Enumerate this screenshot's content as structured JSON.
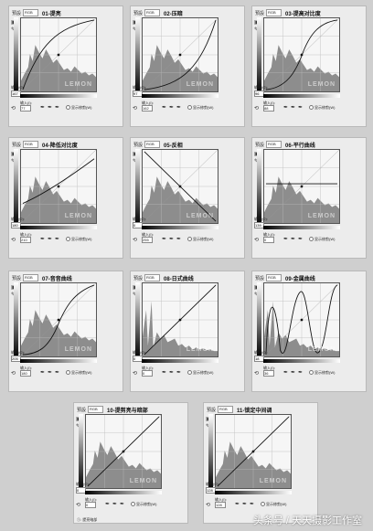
{
  "panels": [
    {
      "title": "01-提亮",
      "preset": "預設",
      "channel": "RGB",
      "output": "167",
      "input": "77"
    },
    {
      "title": "02-压暗",
      "preset": "預設",
      "channel": "RGB",
      "output": "97",
      "input": "162"
    },
    {
      "title": "03-提高对比度",
      "preset": "預設",
      "channel": "RGB",
      "output": "96",
      "input": "88"
    },
    {
      "title": "04-降低对比度",
      "preset": "預設",
      "channel": "RGB",
      "output": "180",
      "input": "210"
    },
    {
      "title": "05-反相",
      "preset": "預設",
      "channel": "RGB",
      "output": "0",
      "input": "255"
    },
    {
      "title": "06-平行曲线",
      "preset": "預設",
      "channel": "RGB",
      "output": "139",
      "input": "0"
    },
    {
      "title": "07-音音曲线",
      "preset": "預設",
      "channel": "RGB",
      "output": "205",
      "input": "180"
    },
    {
      "title": "08-日式曲线",
      "preset": "預設",
      "channel": "RGB",
      "output": "0",
      "input": "0"
    },
    {
      "title": "09-金属曲线",
      "preset": "預設",
      "channel": "RGB",
      "output": "18",
      "input": "36"
    },
    {
      "title": "10-提剪亮与暗部",
      "preset": "預設",
      "channel": "RGB",
      "output": "0",
      "input": "0"
    },
    {
      "title": "11-锁定中间调",
      "preset": "預設",
      "channel": "RGB",
      "output": "128",
      "input": "128"
    }
  ],
  "labels": {
    "output_label": "输出(O):",
    "input_label": "输入(I):",
    "clip_label": "显示修剪(W)",
    "watermark": "LEMON",
    "legend_text": "①: 提亮暗部",
    "footer": "头条号 / 天天摄影工作室"
  }
}
